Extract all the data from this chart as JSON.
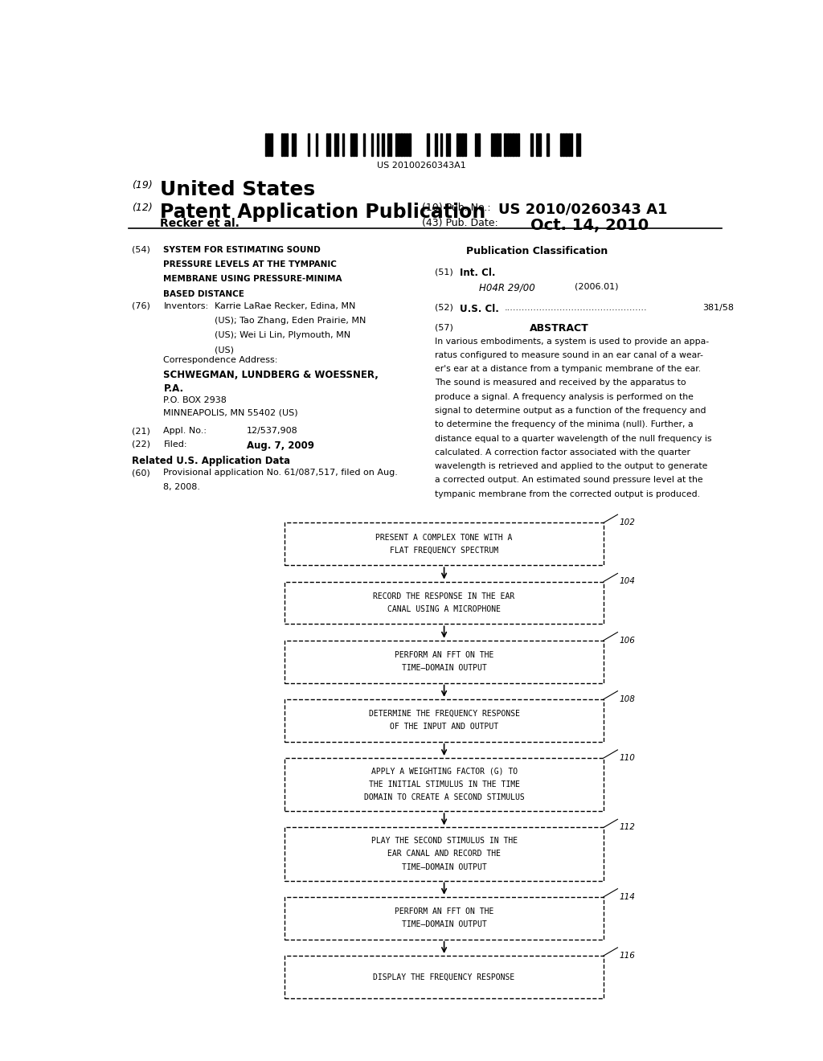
{
  "bg_color": "#ffffff",
  "barcode_text": "US 20100260343A1",
  "header_line1_num": "(19)",
  "header_line1_text": "United States",
  "header_line2_num": "(12)",
  "header_line2_text": "Patent Application Publication",
  "header_pub_num_label": "(10) Pub. No.:",
  "header_pub_num_value": "US 2010/0260343 A1",
  "header_author": "Recker et al.",
  "header_date_label": "(43) Pub. Date:",
  "header_date_value": "Oct. 14, 2010",
  "field54_num": "(54)",
  "field54_text": "SYSTEM FOR ESTIMATING SOUND\nPRESSURE LEVELS AT THE TYMPANIC\nMEMBRANE USING PRESSURE-MINIMA\nBASED DISTANCE",
  "pub_class_title": "Publication Classification",
  "field51_num": "(51)",
  "field51_label": "Int. Cl.",
  "field51_code": "H04R 29/00",
  "field51_year": "(2006.01)",
  "field52_num": "(52)",
  "field52_label": "U.S. Cl.",
  "field52_dots": ".................................................",
  "field52_value": "381/58",
  "field76_num": "(76)",
  "field76_label": "Inventors:",
  "field76_text": "Karrie LaRae Recker, Edina, MN\n(US); Tao Zhang, Eden Prairie, MN\n(US); Wei Li Lin, Plymouth, MN\n(US)",
  "field57_num": "(57)",
  "field57_label": "ABSTRACT",
  "field57_text": "In various embodiments, a system is used to provide an appa-\nratus configured to measure sound in an ear canal of a wear-\ner's ear at a distance from a tympanic membrane of the ear.\nThe sound is measured and received by the apparatus to\nproduce a signal. A frequency analysis is performed on the\nsignal to determine output as a function of the frequency and\nto determine the frequency of the minima (null). Further, a\ndistance equal to a quarter wavelength of the null frequency is\ncalculated. A correction factor associated with the quarter\nwavelength is retrieved and applied to the output to generate\na corrected output. An estimated sound pressure level at the\ntympanic membrane from the corrected output is produced.",
  "corr_addr_label": "Correspondence Address:",
  "corr_addr_firm": "SCHWEGMAN, LUNDBERG & WOESSNER,",
  "corr_addr_firm2": "P.A.",
  "corr_addr_box": "P.O. BOX 2938",
  "corr_addr_city": "MINNEAPOLIS, MN 55402 (US)",
  "field21_num": "(21)",
  "field21_label": "Appl. No.:",
  "field21_value": "12/537,908",
  "field22_num": "(22)",
  "field22_label": "Filed:",
  "field22_value": "Aug. 7, 2009",
  "related_title": "Related U.S. Application Data",
  "field60_num": "(60)",
  "field60_text": "Provisional application No. 61/087,517, filed on Aug.\n8, 2008.",
  "flowchart_steps": [
    {
      "id": "102",
      "lines": [
        "PRESENT A COMPLEX TONE WITH A",
        "FLAT FREQUENCY SPECTRUM"
      ]
    },
    {
      "id": "104",
      "lines": [
        "RECORD THE RESPONSE IN THE EAR",
        "CANAL USING A MICROPHONE"
      ]
    },
    {
      "id": "106",
      "lines": [
        "PERFORM AN FFT ON THE",
        "TIME–DOMAIN OUTPUT"
      ]
    },
    {
      "id": "108",
      "lines": [
        "DETERMINE THE FREQUENCY RESPONSE",
        "OF THE INPUT AND OUTPUT"
      ]
    },
    {
      "id": "110",
      "lines": [
        "APPLY A WEIGHTING FACTOR (G) TO",
        "THE INITIAL STIMULUS IN THE TIME",
        "DOMAIN TO CREATE A SECOND STIMULUS"
      ]
    },
    {
      "id": "112",
      "lines": [
        "PLAY THE SECOND STIMULUS IN THE",
        "EAR CANAL AND RECORD THE",
        "TIME–DOMAIN OUTPUT"
      ]
    },
    {
      "id": "114",
      "lines": [
        "PERFORM AN FFT ON THE",
        "TIME–DOMAIN OUTPUT"
      ]
    },
    {
      "id": "116",
      "lines": [
        "DISPLAY THE FREQUENCY RESPONSE"
      ]
    }
  ]
}
